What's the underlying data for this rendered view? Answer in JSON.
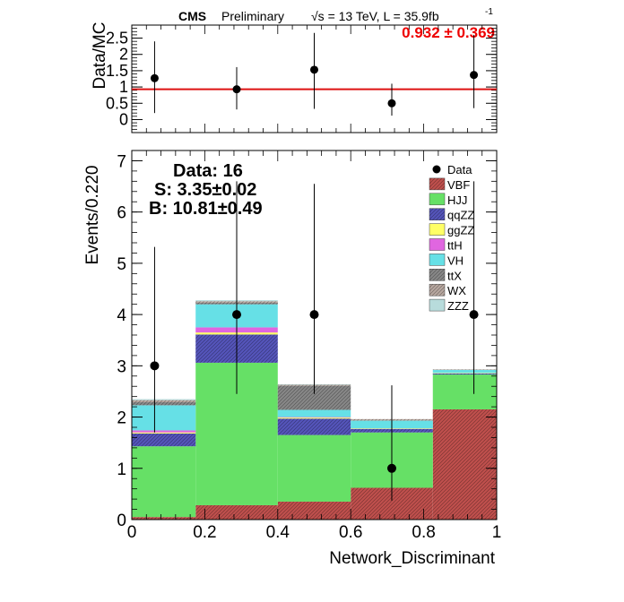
{
  "header": {
    "cms": "CMS",
    "preliminary": "Preliminary",
    "lumi": "√s = 13 TeV, L = 35.9fb",
    "lumi_sup": "-1"
  },
  "ratio_text": "0.932 ± 0.369",
  "stats": {
    "data": "Data: 16",
    "signal": "S: 3.35±0.02",
    "background": "B: 10.81±0.49"
  },
  "colors": {
    "VBF": "#c0504d",
    "HJJ": "#66e066",
    "qqZZ": "#5555bb",
    "ggZZ": "#ffff66",
    "ttH": "#e066e0",
    "VH": "#66e0e6",
    "ttX": "#888888",
    "WX": "#b8a8a0",
    "ZZZ": "#b8dcdc",
    "ratio_line": "#dd1111",
    "ratio_text": "#ee0000"
  },
  "chart_data": [
    {
      "type": "scatter",
      "panel": "ratio",
      "ylabel": "Data/MC",
      "xlim": [
        0,
        1
      ],
      "ylim": [
        -0.4,
        2.9
      ],
      "yticks": [
        "0",
        "0.5",
        "1",
        "1.5",
        "2",
        "2.5"
      ],
      "reference_line": 0.932,
      "x": [
        0.0625,
        0.2875,
        0.5,
        0.7125,
        0.9375
      ],
      "y": [
        1.27,
        0.93,
        1.53,
        0.5,
        1.37
      ],
      "err_low": [
        1.07,
        0.62,
        1.2,
        0.38,
        1.02
      ],
      "err_high": [
        1.13,
        0.68,
        1.13,
        0.6,
        1.23
      ]
    },
    {
      "type": "bar",
      "panel": "main",
      "stacked": true,
      "xlabel": "Network_Discriminant",
      "ylabel": "Events/0.220",
      "xlim": [
        0,
        1
      ],
      "ylim": [
        0,
        7.2
      ],
      "xticks": [
        "0",
        "0.2",
        "0.4",
        "0.6",
        "0.8",
        "1"
      ],
      "yticks": [
        "0",
        "1",
        "2",
        "3",
        "4",
        "5",
        "6",
        "7"
      ],
      "bin_edges": [
        0,
        0.175,
        0.4,
        0.6,
        0.825,
        1.0
      ],
      "series": [
        {
          "name": "VBF",
          "values": [
            0.05,
            0.28,
            0.35,
            0.62,
            2.15
          ]
        },
        {
          "name": "HJJ",
          "values": [
            1.38,
            2.78,
            1.3,
            1.08,
            0.68
          ]
        },
        {
          "name": "qqZZ",
          "values": [
            0.25,
            0.55,
            0.32,
            0.07,
            0.02
          ]
        },
        {
          "name": "ggZZ",
          "values": [
            0.02,
            0.04,
            0.02,
            0.01,
            0.01
          ]
        },
        {
          "name": "ttH",
          "values": [
            0.04,
            0.1,
            0.01,
            0.0,
            0.0
          ]
        },
        {
          "name": "VH",
          "values": [
            0.49,
            0.45,
            0.14,
            0.15,
            0.06
          ]
        },
        {
          "name": "ttX",
          "values": [
            0.06,
            0.03,
            0.47,
            0.0,
            0.0
          ]
        },
        {
          "name": "WX",
          "values": [
            0.04,
            0.03,
            0.02,
            0.03,
            0.01
          ]
        },
        {
          "name": "ZZZ",
          "values": [
            0.02,
            0.02,
            0.01,
            0.0,
            0.0
          ]
        }
      ],
      "data_points": {
        "name": "Data",
        "x": [
          0.0625,
          0.2875,
          0.5,
          0.7125,
          0.9375
        ],
        "y": [
          3,
          4,
          4,
          1,
          4
        ],
        "err_low": [
          1.3,
          1.55,
          1.55,
          0.63,
          1.55
        ],
        "err_high": [
          2.32,
          2.6,
          2.55,
          1.62,
          2.6
        ]
      },
      "legend": [
        "Data",
        "VBF",
        "HJJ",
        "qqZZ",
        "ggZZ",
        "ttH",
        "VH",
        "ttX",
        "WX",
        "ZZZ"
      ],
      "legend_position": "top-right"
    }
  ]
}
